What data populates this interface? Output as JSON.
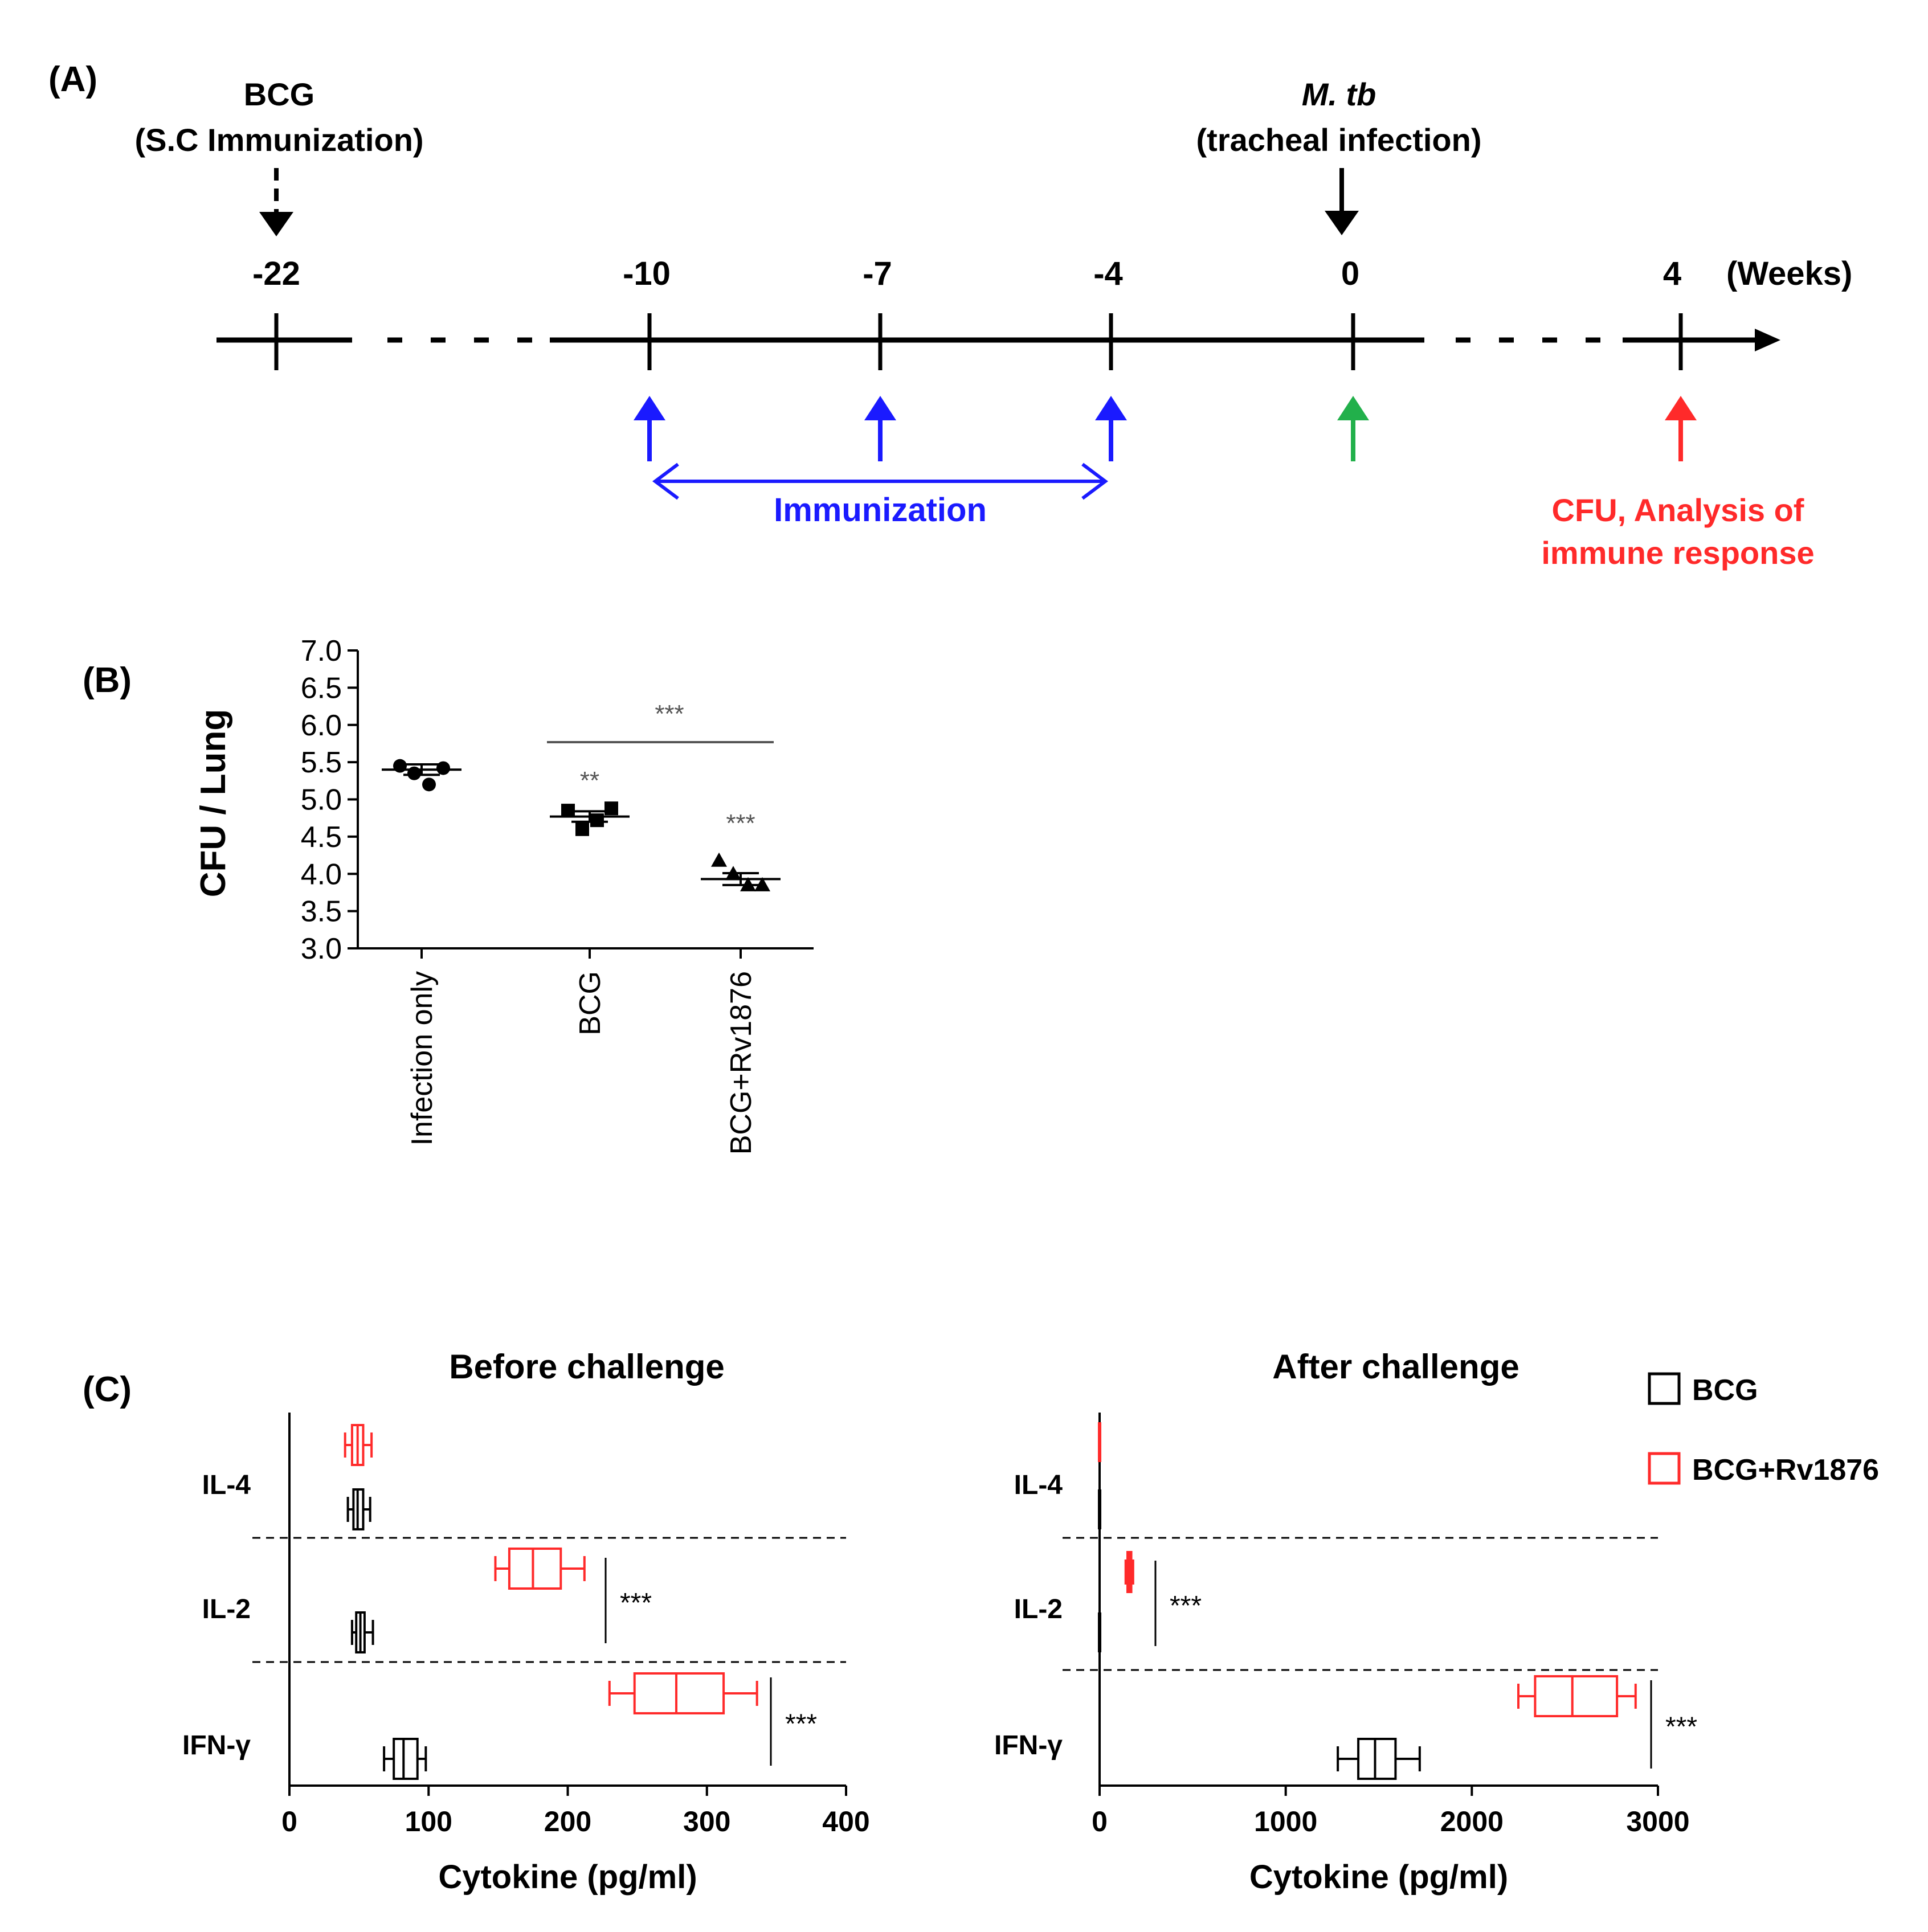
{
  "colors": {
    "black": "#000000",
    "blue": "#1a1aff",
    "green": "#22b04b",
    "red": "#ff2a2a",
    "gray": "#555555"
  },
  "panel_a": {
    "label": "(A)",
    "bcg_title": "BCG",
    "bcg_subtitle": "(S.C Immunization)",
    "mtb_title": "M. tb",
    "mtb_subtitle": "(tracheal infection)",
    "ticks": [
      "-22",
      "-10",
      "-7",
      "-4",
      "0",
      "4"
    ],
    "units": "(Weeks)",
    "immunization_label": "Immunization",
    "outcome_line1": "CFU, Analysis of",
    "outcome_line2": "immune response"
  },
  "panel_b": {
    "label": "(B)",
    "chart_data": {
      "type": "scatter",
      "ylabel": "CFU / Lung",
      "ylim": [
        3.0,
        7.0
      ],
      "yticks": [
        "3.0",
        "3.5",
        "4.0",
        "4.5",
        "5.0",
        "5.5",
        "6.0",
        "6.5",
        "7.0"
      ],
      "categories": [
        "Infection only",
        "BCG",
        "BCG+Rv1876"
      ],
      "points": [
        [
          5.45,
          5.35,
          5.2,
          5.42
        ],
        [
          4.85,
          4.6,
          4.72,
          4.88
        ],
        [
          4.18,
          4.0,
          3.85,
          3.85
        ]
      ],
      "means": [
        5.4,
        4.77,
        3.93
      ],
      "sem": [
        0.07,
        0.07,
        0.08
      ],
      "markers": [
        "circle",
        "square",
        "triangle"
      ],
      "annotations": [
        "**",
        "***",
        "***"
      ]
    }
  },
  "panel_c": {
    "label": "(C)",
    "legend": [
      "BCG",
      "BCG+Rv1876"
    ],
    "charts": [
      {
        "type": "boxplot",
        "title": "Before challenge",
        "xlabel": "Cytokine (pg/ml)",
        "xlim": [
          0,
          400
        ],
        "xticks": [
          "0",
          "100",
          "200",
          "300",
          "400"
        ],
        "categories": [
          "IL-4",
          "IL-2",
          "IFN-γ"
        ],
        "series": [
          {
            "name": "BCG",
            "boxes": [
              [
                42,
                46,
                49,
                53,
                58
              ],
              [
                45,
                48,
                51,
                54,
                60
              ],
              [
                68,
                75,
                82,
                92,
                98
              ]
            ]
          },
          {
            "name": "BCG+Rv1876",
            "boxes": [
              [
                40,
                45,
                49,
                53,
                59
              ],
              [
                148,
                158,
                175,
                195,
                212
              ],
              [
                230,
                248,
                278,
                312,
                336
              ]
            ]
          }
        ],
        "significance": [
          "",
          "***",
          "***"
        ]
      },
      {
        "type": "boxplot",
        "title": "After challenge",
        "xlabel": "Cytokine (pg/ml)",
        "xlim": [
          0,
          3000
        ],
        "xticks": [
          "0",
          "1000",
          "2000",
          "3000"
        ],
        "categories": [
          "IL-4",
          "IL-2",
          "IFN-γ"
        ],
        "series": [
          {
            "name": "BCG",
            "boxes": [
              [
                0,
                0,
                0,
                0,
                0
              ],
              [
                0,
                0,
                0,
                0,
                0
              ],
              [
                1280,
                1390,
                1480,
                1590,
                1720
              ]
            ]
          },
          {
            "name": "BCG+Rv1876",
            "boxes": [
              [
                0,
                0,
                0,
                0,
                0
              ],
              [
                140,
                150,
                160,
                170,
                180
              ],
              [
                2250,
                2340,
                2540,
                2780,
                2880
              ]
            ]
          }
        ],
        "significance": [
          "",
          "***",
          "***"
        ]
      }
    ]
  }
}
